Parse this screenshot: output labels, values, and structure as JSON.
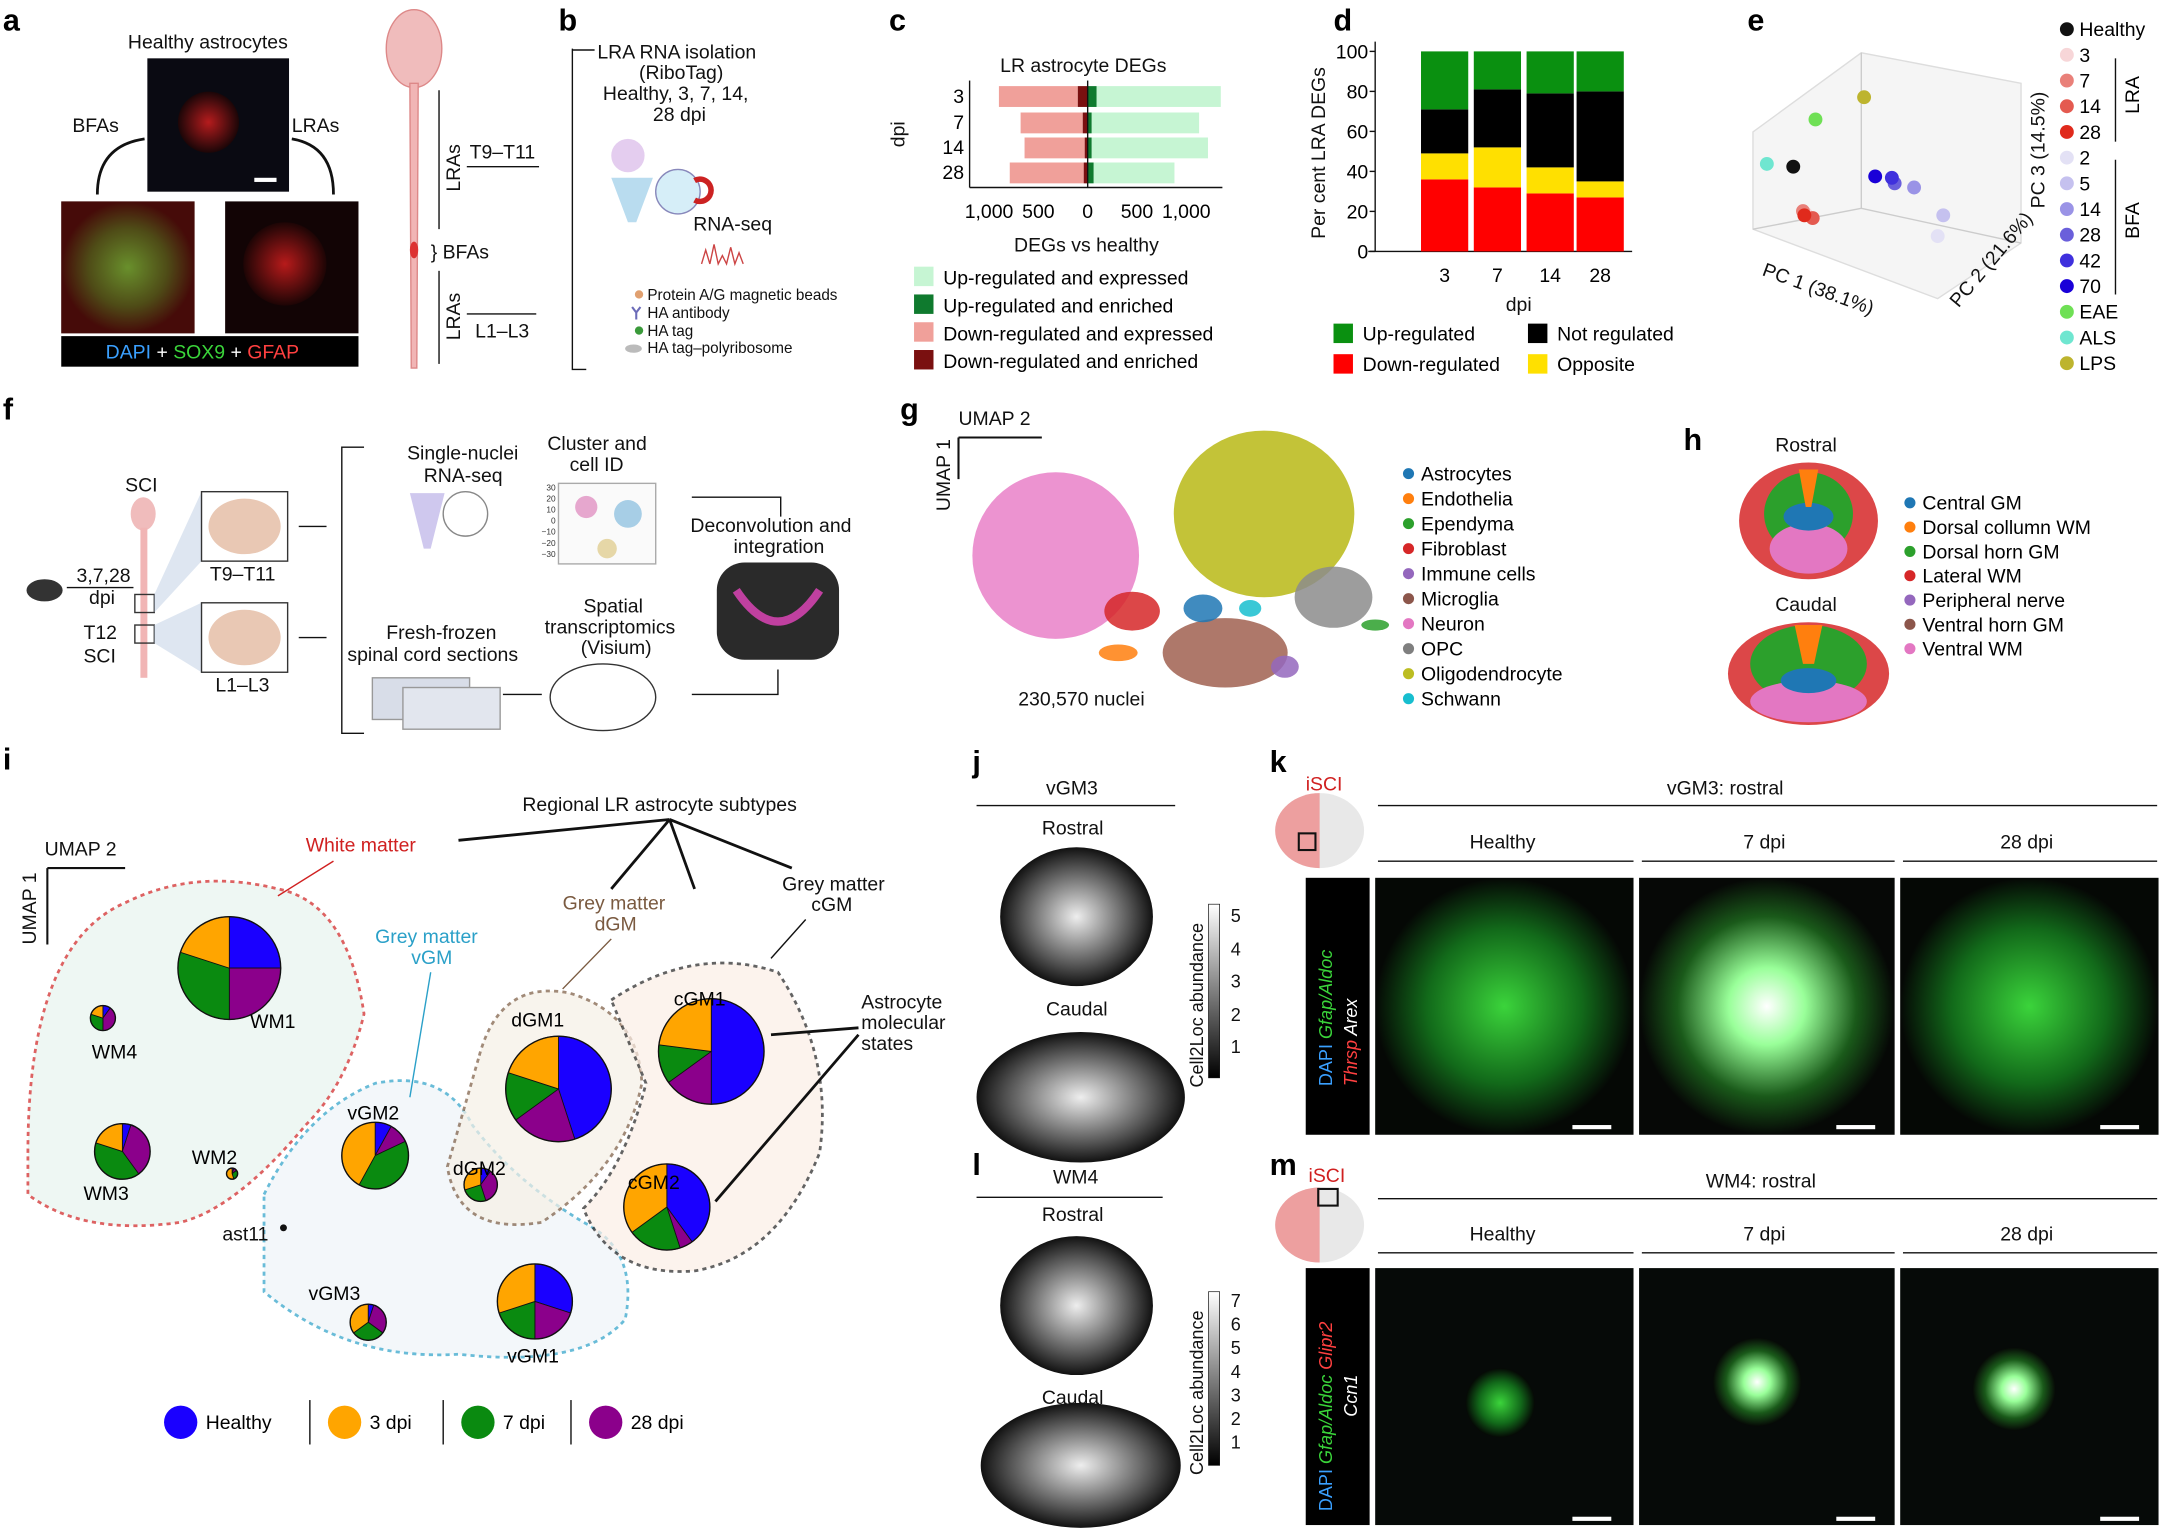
{
  "panel_labels": [
    "a",
    "b",
    "c",
    "d",
    "e",
    "f",
    "g",
    "h",
    "i",
    "j",
    "k",
    "l",
    "m"
  ],
  "a": {
    "title": "Healthy astrocytes",
    "left": "BFAs",
    "right": "LRAs",
    "stain_dapi": "DAPI",
    "plus1": " + ",
    "stain_sox9": "SOX9",
    "plus2": " + ",
    "stain_gfap": "GFAP",
    "cord_lra_top": "LRAs",
    "cord_t": "T9–T11",
    "cord_bfa": "} BFAs",
    "cord_lra_bottom": "LRAs",
    "cord_l": "L1–L3"
  },
  "b": {
    "line1": "LRA RNA isolation",
    "line2": "(RiboTag)",
    "line3": "Healthy, 3, 7, 14,",
    "line4": "28 dpi",
    "rnaseq": "RNA-seq",
    "legend": [
      "Protein A/G magnetic beads",
      "HA antibody",
      "HA tag",
      "HA tag–polyribosome"
    ]
  },
  "chart_data": [
    {
      "id": "c",
      "type": "bar",
      "orientation": "horizontal",
      "stacked": true,
      "title": "LR astrocyte DEGs",
      "xlabel": "DEGs vs healthy",
      "ylabel": "dpi",
      "categories": [
        "3",
        "7",
        "14",
        "28"
      ],
      "xticks": [
        "1,000",
        "500",
        "0",
        "500",
        "1,000"
      ],
      "xlim": [
        -1400,
        1400
      ],
      "series": [
        {
          "name": "Up-regulated and expressed",
          "color": "#c6f5d3",
          "values": [
            1260,
            1090,
            1180,
            820
          ]
        },
        {
          "name": "Up-regulated and enriched",
          "color": "#0f7a2e",
          "values": [
            90,
            40,
            40,
            60
          ]
        },
        {
          "name": "Down-regulated and expressed",
          "color": "#f0a09a",
          "values": [
            -800,
            -630,
            -610,
            -750
          ]
        },
        {
          "name": "Down-regulated and enriched",
          "color": "#7a1010",
          "values": [
            -100,
            -50,
            -30,
            -40
          ]
        }
      ]
    },
    {
      "id": "d",
      "type": "bar",
      "stacked": true,
      "xlabel": "dpi",
      "ylabel": "Per cent LRA DEGs",
      "ylim": [
        0,
        100
      ],
      "yticks": [
        "0",
        "20",
        "40",
        "60",
        "80",
        "100"
      ],
      "categories": [
        "3",
        "7",
        "14",
        "28"
      ],
      "series": [
        {
          "name": "Down-regulated",
          "color": "#ff0000",
          "values": [
            36,
            32,
            29,
            27
          ]
        },
        {
          "name": "Opposite",
          "color": "#ffe000",
          "values": [
            13,
            20,
            13,
            8
          ]
        },
        {
          "name": "Not regulated",
          "color": "#000000",
          "values": [
            22,
            29,
            37,
            45
          ]
        },
        {
          "name": "Up-regulated",
          "color": "#0a9010",
          "values": [
            29,
            19,
            21,
            20
          ]
        }
      ],
      "legend_order": [
        "Up-regulated",
        "Not regulated",
        "Down-regulated",
        "Opposite"
      ]
    },
    {
      "id": "e",
      "type": "scatter",
      "projection": "3d",
      "xlabel": "PC 1 (38.1%)",
      "ylabel": "PC 2 (21.6%)",
      "zlabel": "PC 3 (14.5%)",
      "legend": [
        {
          "label": "Healthy",
          "color": "#111111"
        },
        {
          "label": "3",
          "color": "#f7d6d8",
          "group": "LRA"
        },
        {
          "label": "7",
          "color": "#e98079",
          "group": "LRA"
        },
        {
          "label": "14",
          "color": "#e45a50",
          "group": "LRA"
        },
        {
          "label": "28",
          "color": "#e02a1c",
          "group": "LRA"
        },
        {
          "label": "2",
          "color": "#e3e1f5",
          "group": "BFA"
        },
        {
          "label": "5",
          "color": "#c5c1ef",
          "group": "BFA"
        },
        {
          "label": "14",
          "color": "#9a93e6",
          "group": "BFA"
        },
        {
          "label": "28",
          "color": "#6a5fdb",
          "group": "BFA"
        },
        {
          "label": "42",
          "color": "#3f30dd",
          "group": "BFA"
        },
        {
          "label": "70",
          "color": "#1a00d8",
          "group": "BFA"
        },
        {
          "label": "EAE",
          "color": "#6fe055"
        },
        {
          "label": "ALS",
          "color": "#6fe6d0"
        },
        {
          "label": "LPS",
          "color": "#bdb42e"
        }
      ],
      "groups": [
        "LRA",
        "BFA"
      ]
    },
    {
      "id": "i",
      "type": "pie",
      "series_names": [
        "Healthy",
        "3 dpi",
        "7 dpi",
        "28 dpi"
      ],
      "colors": [
        "#1a00ff",
        "#ffa500",
        "#0a8a10",
        "#8b008b"
      ],
      "pies": [
        {
          "label": "WM1",
          "values": [
            0.25,
            0.2,
            0.3,
            0.25
          ]
        },
        {
          "label": "WM4",
          "values": [
            0.1,
            0.2,
            0.3,
            0.4
          ]
        },
        {
          "label": "WM3",
          "values": [
            0.05,
            0.2,
            0.4,
            0.35
          ]
        },
        {
          "label": "WM2",
          "values": [
            0.05,
            0.55,
            0.3,
            0.1
          ]
        },
        {
          "label": "vGM2",
          "values": [
            0.08,
            0.42,
            0.4,
            0.1
          ]
        },
        {
          "label": "dGM1",
          "values": [
            0.45,
            0.2,
            0.15,
            0.2
          ]
        },
        {
          "label": "dGM2",
          "values": [
            0.1,
            0.3,
            0.25,
            0.35
          ]
        },
        {
          "label": "cGM1",
          "values": [
            0.5,
            0.23,
            0.12,
            0.15
          ]
        },
        {
          "label": "cGM2",
          "values": [
            0.4,
            0.35,
            0.2,
            0.05
          ]
        },
        {
          "label": "vGM3",
          "values": [
            0.05,
            0.35,
            0.3,
            0.3
          ]
        },
        {
          "label": "vGM1",
          "values": [
            0.3,
            0.3,
            0.2,
            0.2
          ]
        }
      ]
    }
  ],
  "f": {
    "sci": "SCI",
    "dpi1": "3,7,28",
    "dpi2": "dpi",
    "t12a": "T12",
    "t12b": "SCI",
    "t9": "T9–T11",
    "l1": "L1–L3",
    "sn1": "Single-nuclei",
    "sn2": "RNA-seq",
    "cl1": "Cluster and",
    "cl2": "cell ID",
    "ff1": "Fresh-frozen",
    "ff2": "spinal cord sections",
    "st1": "Spatial",
    "st2": "transcriptomics",
    "st3": "(Visium)",
    "dc1": "Deconvolution and",
    "dc2": "integration",
    "axis_ticks": [
      "30",
      "20",
      "10",
      "0",
      "−10",
      "−20",
      "−30"
    ]
  },
  "g": {
    "umap2": "UMAP 2",
    "umap1": "UMAP 1",
    "count": "230,570 nuclei",
    "legend": [
      {
        "label": "Astrocytes",
        "color": "#1f77b4"
      },
      {
        "label": "Endothelia",
        "color": "#ff7f0e"
      },
      {
        "label": "Ependyma",
        "color": "#2ca02c"
      },
      {
        "label": "Fibroblast",
        "color": "#d62728"
      },
      {
        "label": "Immune cells",
        "color": "#9467bd"
      },
      {
        "label": "Microglia",
        "color": "#8c564b"
      },
      {
        "label": "Neuron",
        "color": "#e377c2"
      },
      {
        "label": "OPC",
        "color": "#7f7f7f"
      },
      {
        "label": "Oligodendrocyte",
        "color": "#bcbd22"
      },
      {
        "label": "Schwann",
        "color": "#17becf"
      }
    ]
  },
  "h": {
    "rostral": "Rostral",
    "caudal": "Caudal",
    "legend": [
      {
        "label": "Central GM",
        "color": "#1f77b4"
      },
      {
        "label": "Dorsal collumn WM",
        "color": "#ff7f0e"
      },
      {
        "label": "Dorsal horn GM",
        "color": "#2ca02c"
      },
      {
        "label": "Lateral WM",
        "color": "#d62728"
      },
      {
        "label": "Peripheral nerve",
        "color": "#9467bd"
      },
      {
        "label": "Ventral horn GM",
        "color": "#8c564b"
      },
      {
        "label": "Ventral WM",
        "color": "#e377c2"
      }
    ]
  },
  "i": {
    "umap2": "UMAP 2",
    "umap1": "UMAP 1",
    "title": "Regional LR astrocyte subtypes",
    "white": "White matter",
    "gmv1": "Grey matter",
    "gmv2": "vGM",
    "gmd1": "Grey matter",
    "gmd2": "dGM",
    "gmc1": "Grey matter",
    "gmc2": "cGM",
    "ams1": "Astrocyte",
    "ams2": "molecular",
    "ams3": "states",
    "ast11": "ast11"
  },
  "j": {
    "title": "vGM3",
    "rostral": "Rostral",
    "caudal": "Caudal",
    "cbar": "Cell2Loc abundance",
    "ticks": [
      "1",
      "2",
      "3",
      "4",
      "5"
    ]
  },
  "l": {
    "title": "WM4",
    "rostral": "Rostral",
    "caudal": "Caudal",
    "cbar": "Cell2Loc abundance",
    "ticks": [
      "1",
      "2",
      "3",
      "4",
      "5",
      "6",
      "7"
    ]
  },
  "k": {
    "iSCI": "iSCI",
    "title": "vGM3: rostral",
    "cols": [
      "Healthy",
      "7 dpi",
      "28 dpi"
    ],
    "ch_dapi": "DAPI ",
    "ch_g": "Gfap/Aldoc",
    "ch_r": "Thrsp",
    "ch_w": " Arex"
  },
  "m": {
    "iSCI": "iSCI",
    "title": "WM4: rostral",
    "cols": [
      "Healthy",
      "7 dpi",
      "28 dpi"
    ],
    "ch_dapi": "DAPI ",
    "ch_g": "Gfap/Aldoc ",
    "ch_r": "Glipr2",
    "ch_w": "Ccn1"
  }
}
